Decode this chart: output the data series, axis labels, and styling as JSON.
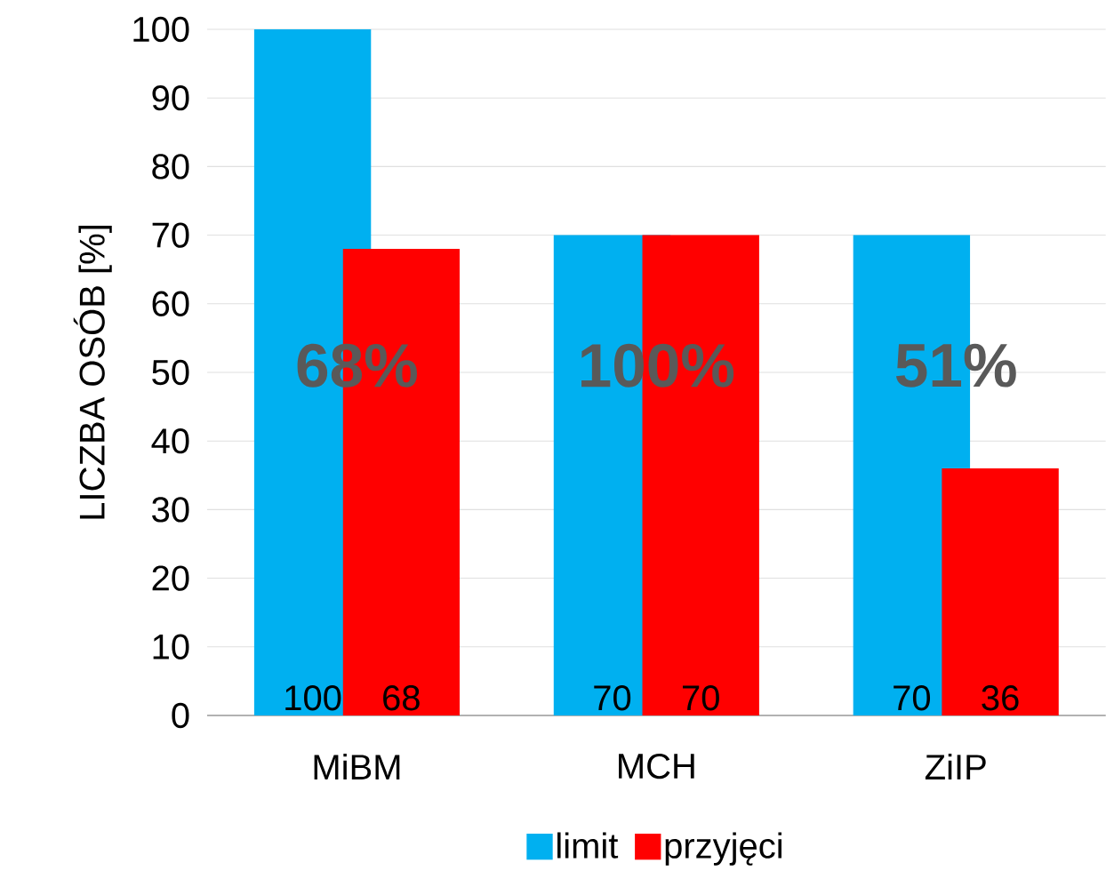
{
  "chart_data": {
    "type": "bar",
    "ylabel": "LICZBA OSÓB [%]",
    "categories": [
      "MiBM",
      "MCH",
      "ZiIP"
    ],
    "series": [
      {
        "name": "limit",
        "color": "#00b0f0",
        "values": [
          100,
          70,
          70
        ]
      },
      {
        "name": "przyjęci",
        "color": "#ff0000",
        "values": [
          68,
          70,
          36
        ]
      }
    ],
    "ylim": [
      0,
      100
    ],
    "yticks": [
      0,
      10,
      20,
      30,
      40,
      50,
      60,
      70,
      80,
      90,
      100
    ],
    "grid": "y",
    "legend": "bottom",
    "data_labels": true,
    "annotations": [
      "68%",
      "100%",
      "51%"
    ]
  }
}
